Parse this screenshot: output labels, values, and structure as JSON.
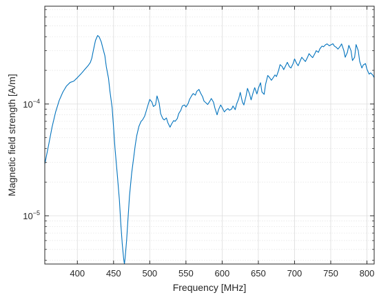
{
  "chart_data": {
    "type": "line",
    "title": "",
    "xlabel": "Frequency [MHz]",
    "ylabel": "Magnetic field strength [A/m]",
    "x_scale": "linear",
    "y_scale": "log",
    "xlim": [
      355,
      810
    ],
    "ylim": [
      3.7e-06,
      0.00075
    ],
    "grid": true,
    "minor_grid": true,
    "x_ticks": [
      400,
      450,
      500,
      550,
      600,
      650,
      700,
      750,
      800
    ],
    "x_tick_labels": [
      "400",
      "450",
      "500",
      "550",
      "600",
      "650",
      "700",
      "750",
      "800"
    ],
    "y_ticks": [
      {
        "value": 1e-05,
        "base": "10",
        "exponent": "−5"
      },
      {
        "value": 0.0001,
        "base": "10",
        "exponent": "−4"
      }
    ],
    "line_color": "#0072BD",
    "series": [
      {
        "x": [
          355,
          360,
          365,
          370,
          375,
          380,
          385,
          390,
          395,
          400,
          405,
          410,
          415,
          418,
          420,
          422,
          425,
          428,
          430,
          433,
          435,
          438,
          440,
          443,
          445,
          448,
          450,
          452,
          455,
          458,
          460,
          462,
          464,
          465,
          466,
          468,
          470,
          472,
          475,
          478,
          480,
          482,
          485,
          488,
          490,
          493,
          495,
          498,
          500,
          503,
          505,
          508,
          510,
          513,
          515,
          518,
          520,
          523,
          525,
          528,
          530,
          533,
          535,
          538,
          540,
          543,
          545,
          548,
          550,
          553,
          555,
          558,
          560,
          563,
          565,
          568,
          570,
          573,
          575,
          578,
          580,
          583,
          585,
          588,
          590,
          593,
          595,
          598,
          600,
          603,
          605,
          608,
          610,
          613,
          615,
          618,
          620,
          623,
          625,
          628,
          630,
          633,
          635,
          638,
          640,
          643,
          645,
          648,
          650,
          653,
          655,
          658,
          660,
          663,
          665,
          668,
          670,
          673,
          675,
          678,
          680,
          683,
          685,
          688,
          690,
          693,
          695,
          698,
          700,
          703,
          705,
          708,
          710,
          713,
          715,
          718,
          720,
          723,
          725,
          728,
          730,
          733,
          735,
          738,
          740,
          743,
          745,
          748,
          750,
          753,
          755,
          758,
          760,
          763,
          765,
          768,
          770,
          773,
          775,
          778,
          780,
          783,
          785,
          788,
          790,
          793,
          795,
          798,
          800,
          803,
          805,
          808,
          810
        ],
        "y": [
          2.9e-05,
          4.2e-05,
          6.2e-05,
          8.5e-05,
          0.000108,
          0.000128,
          0.000145,
          0.000156,
          0.00016,
          0.000172,
          0.000186,
          0.000203,
          0.000221,
          0.000236,
          0.000258,
          0.0003,
          0.00037,
          0.00041,
          0.0004,
          0.00036,
          0.00032,
          0.00027,
          0.000215,
          0.00017,
          0.00013,
          9.3e-05,
          6.2e-05,
          4e-05,
          2.4e-05,
          1.4e-05,
          8.5e-06,
          5.6e-06,
          4.1e-06,
          3.7e-06,
          4.2e-06,
          6e-06,
          9.5e-06,
          1.5e-05,
          2.4e-05,
          3.4e-05,
          4.3e-05,
          5.2e-05,
          6.3e-05,
          7e-05,
          7.2e-05,
          7.8e-05,
          8.6e-05,
          0.0001,
          0.00011,
          0.000104,
          9.5e-05,
          9.8e-05,
          0.000118,
          0.000102,
          8.2e-05,
          7.4e-05,
          7.2e-05,
          7.5e-05,
          6.8e-05,
          6.2e-05,
          6.6e-05,
          7.1e-05,
          7e-05,
          7.4e-05,
          8.2e-05,
          8.8e-05,
          9.6e-05,
          9.8e-05,
          9.4e-05,
          0.000101,
          0.00011,
          0.000119,
          0.000124,
          0.00012,
          0.00013,
          0.000135,
          0.000126,
          0.000116,
          0.000106,
          0.000102,
          9.9e-05,
          0.000106,
          0.000112,
          0.000104,
          9.2e-05,
          8e-05,
          8.9e-05,
          9.8e-05,
          9.3e-05,
          8.5e-05,
          8.8e-05,
          9.1e-05,
          8.8e-05,
          9e-05,
          9.6e-05,
          8.9e-05,
          0.0001,
          0.000112,
          0.000127,
          0.000104,
          9.8e-05,
          0.000118,
          0.000138,
          0.000122,
          0.000109,
          0.000128,
          0.00014,
          0.000123,
          0.000138,
          0.000155,
          0.000128,
          0.000122,
          0.00015,
          0.00018,
          0.000174,
          0.000163,
          0.00017,
          0.000182,
          0.000176,
          0.0002,
          0.000225,
          0.000216,
          0.000203,
          0.000222,
          0.000236,
          0.000215,
          0.00021,
          0.00023,
          0.000253,
          0.00023,
          0.00022,
          0.000245,
          0.000262,
          0.000248,
          0.00024,
          0.000262,
          0.000282,
          0.000268,
          0.00026,
          0.000282,
          0.0003,
          0.00029,
          0.000312,
          0.00033,
          0.000325,
          0.00034,
          0.000345,
          0.000332,
          0.000338,
          0.000346,
          0.00033,
          0.00032,
          0.00031,
          0.000328,
          0.000345,
          0.000302,
          0.000262,
          0.00029,
          0.000335,
          0.0003,
          0.000245,
          0.000262,
          0.00034,
          0.0003,
          0.00024,
          0.00021,
          0.000224,
          0.00023,
          0.000205,
          0.000185,
          0.00019,
          0.000182,
          0.000172
        ]
      }
    ]
  }
}
